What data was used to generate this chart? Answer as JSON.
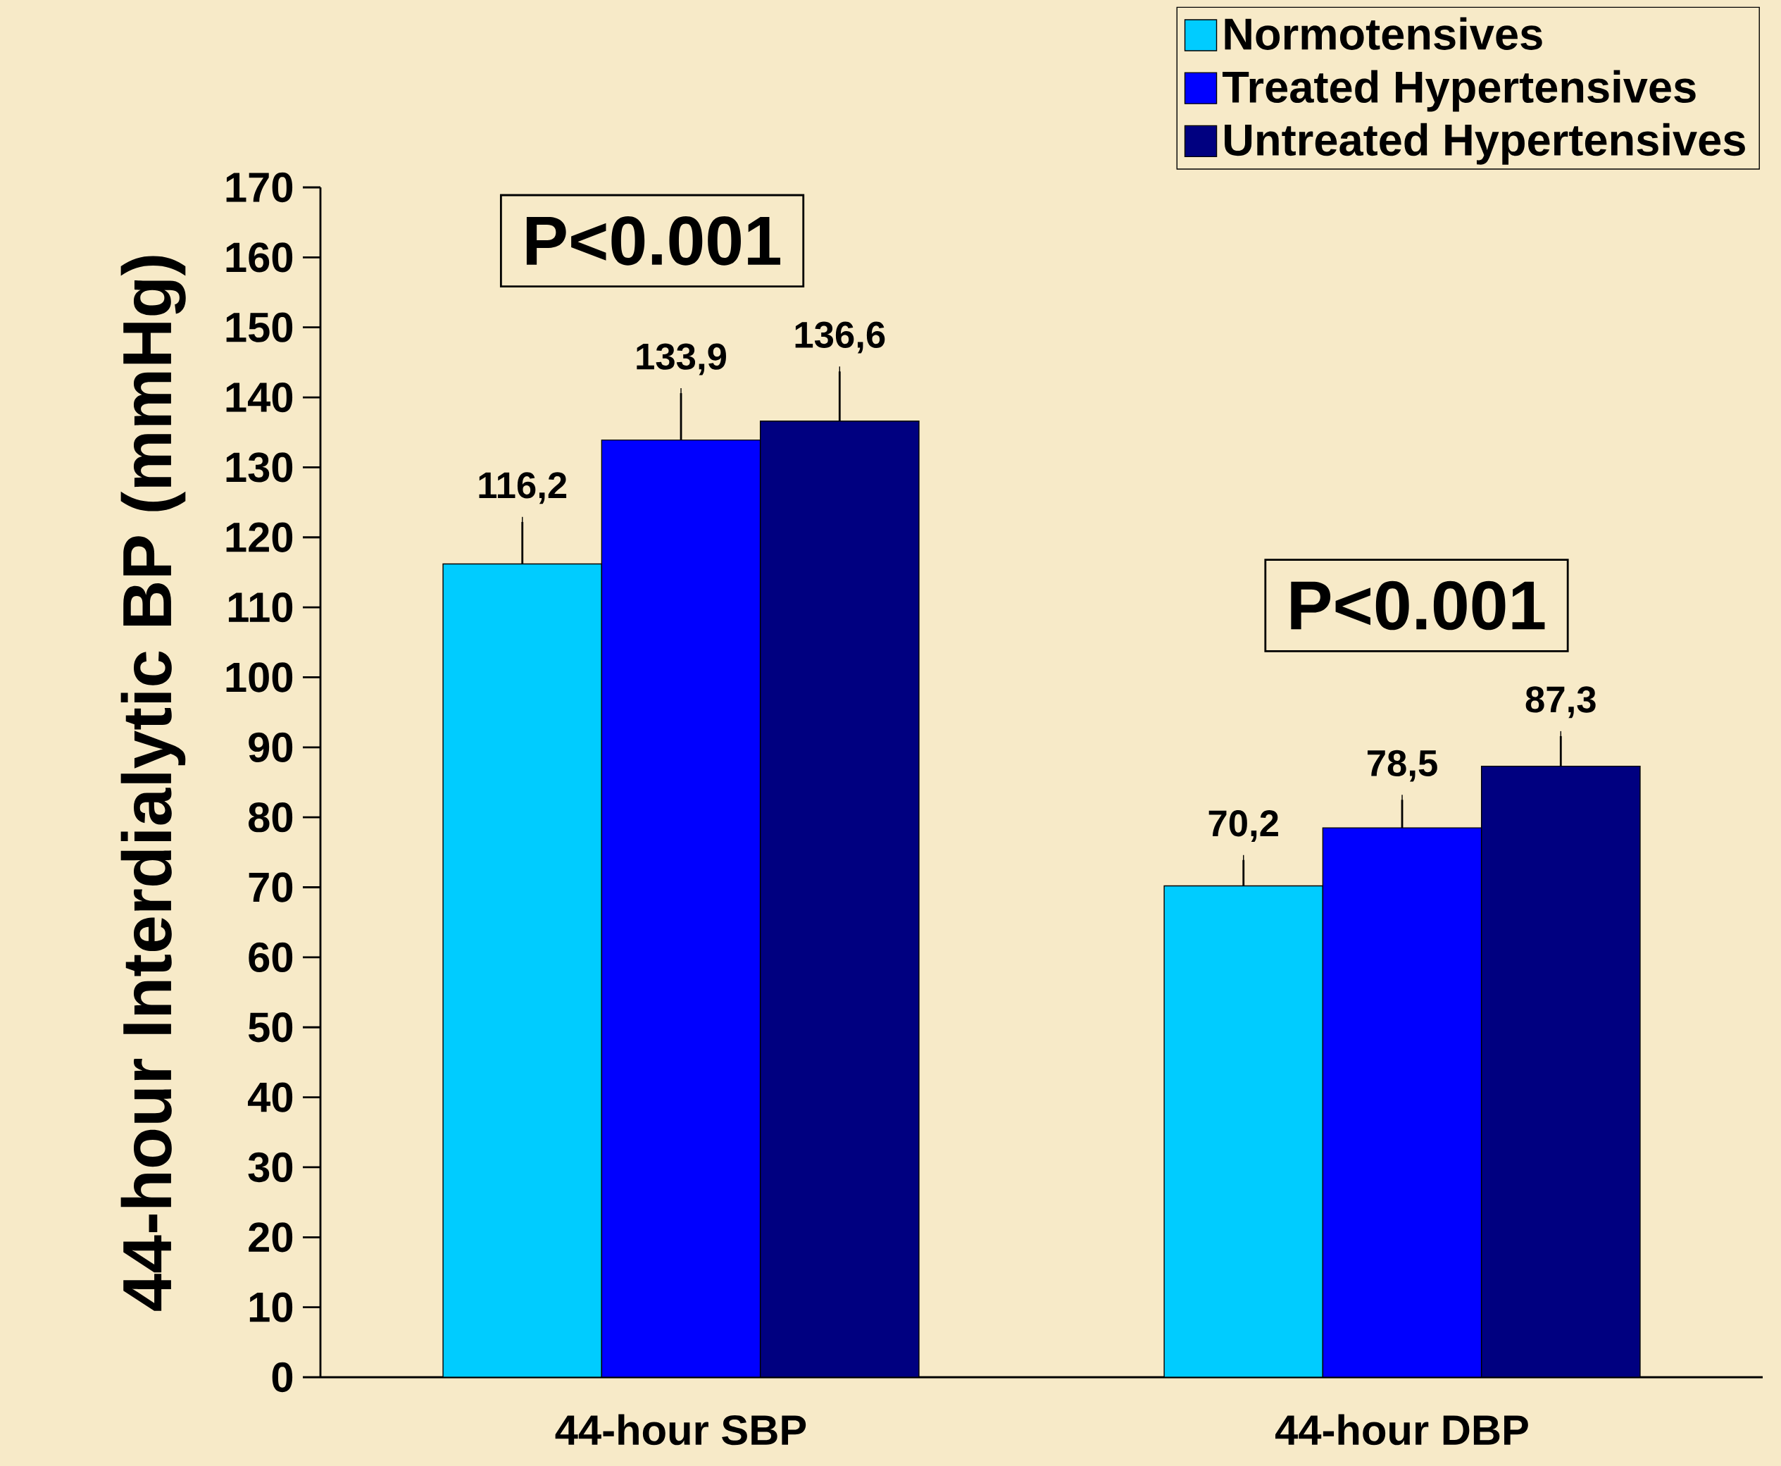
{
  "chart_data": {
    "type": "bar",
    "ylabel": "44-hour Interdialytic BP (mmHg)",
    "categories": [
      "44-hour SBP",
      "44-hour DBP"
    ],
    "series": [
      {
        "name": "Normotensives",
        "color": "#00ccff",
        "values": [
          116.2,
          70.2
        ],
        "value_labels": [
          "116,2",
          "70,2"
        ],
        "errors": [
          [
            116.2,
            122.2
          ],
          [
            70.2,
            73.9
          ]
        ]
      },
      {
        "name": "Treated Hypertensives",
        "color": "#0000ff",
        "values": [
          133.9,
          78.5
        ],
        "value_labels": [
          "133,9",
          "78,5"
        ],
        "errors": [
          [
            133.9,
            140.6
          ],
          [
            78.5,
            82.5
          ]
        ]
      },
      {
        "name": "Untreated Hypertensives",
        "color": "#000080",
        "values": [
          136.6,
          87.3
        ],
        "value_labels": [
          "136,6",
          "87,3"
        ],
        "errors": [
          [
            136.6,
            143.7
          ],
          [
            87.3,
            91.6
          ]
        ]
      }
    ],
    "annotations": [
      "P<0.001",
      "P<0.001"
    ],
    "ylim": [
      0,
      170
    ],
    "yticks": [
      0,
      10,
      20,
      30,
      40,
      50,
      60,
      70,
      80,
      90,
      100,
      110,
      120,
      130,
      140,
      150,
      160,
      170
    ],
    "legend": "top right",
    "grid": false
  }
}
